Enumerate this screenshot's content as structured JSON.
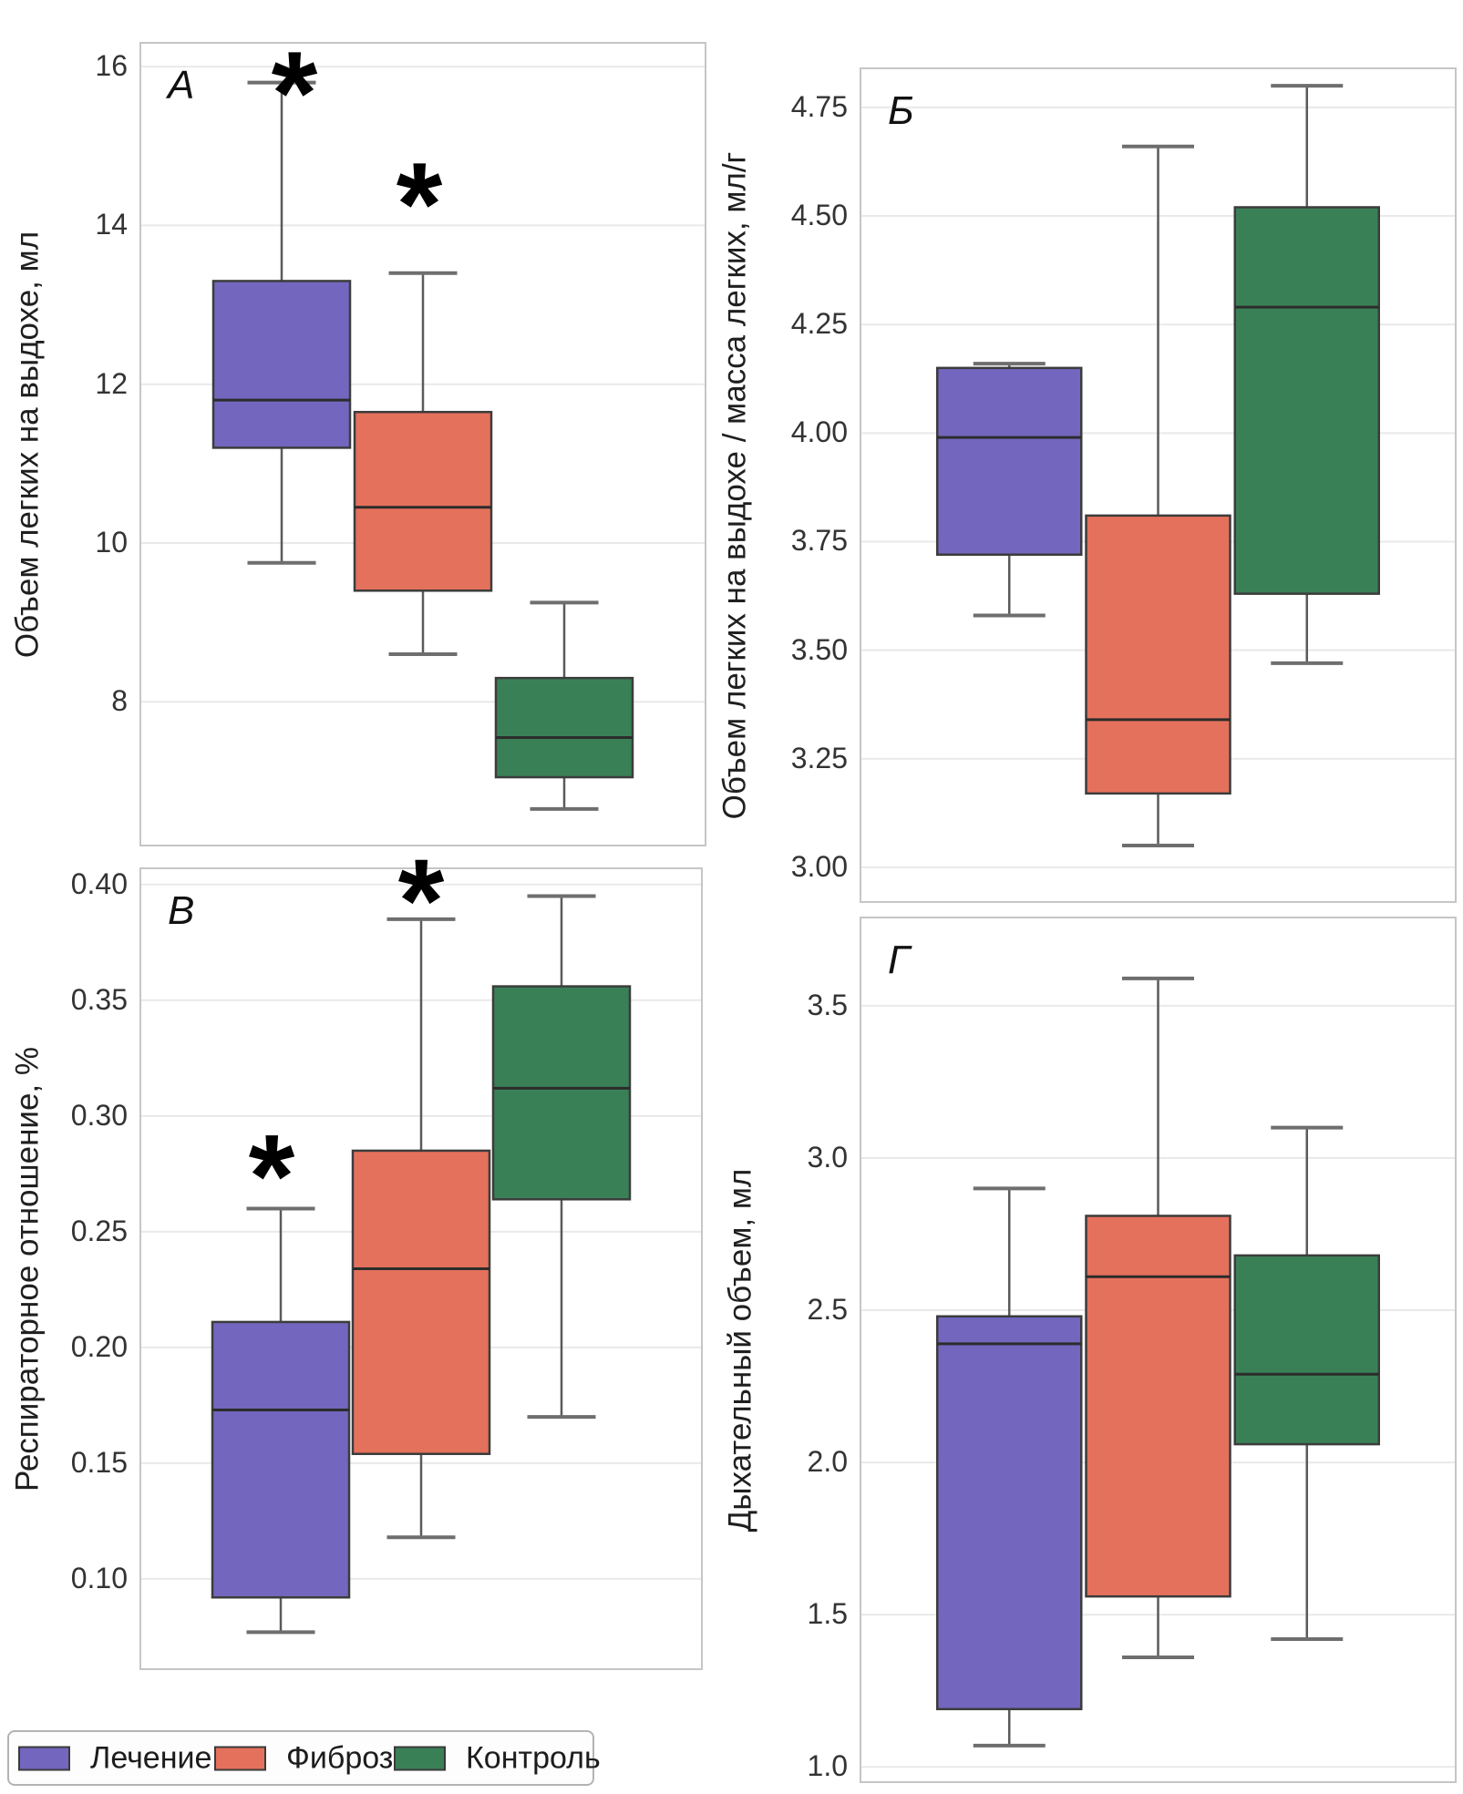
{
  "figure": {
    "background": "#ffffff",
    "grid_color": "#e9e9e9",
    "plot_border_color": "#c6c6c6",
    "box_edge_color": "#3c3c3c",
    "median_color": "#2c2c2c",
    "whisker_color": "#5a5a5a",
    "cap_color": "#6e6e6e",
    "annotation_color": "#000000"
  },
  "groups": [
    "Лечение",
    "Фиброз",
    "Контроль"
  ],
  "group_colors": [
    "#7266be",
    "#e4715c",
    "#3a8057"
  ],
  "legend": {
    "position": "bottom-left",
    "items": [
      {
        "label": "Лечение",
        "color": "#7266be"
      },
      {
        "label": "Фиброз",
        "color": "#e4715c"
      },
      {
        "label": "Контроль",
        "color": "#3a8057"
      }
    ]
  },
  "chart_data": [
    {
      "type": "box",
      "panel": "А",
      "ylabel": "Объем легких на выдохе, мл",
      "ylim": [
        6.19,
        16.3
      ],
      "yticks": [
        8,
        10,
        12,
        14,
        16
      ],
      "ytick_labels": [
        "8",
        "10",
        "12",
        "14",
        "16"
      ],
      "grid": true,
      "series": [
        {
          "name": "Лечение",
          "whislo": 9.75,
          "q1": 11.2,
          "med": 11.8,
          "q3": 13.3,
          "whishi": 15.8
        },
        {
          "name": "Фиброз",
          "whislo": 8.6,
          "q1": 9.4,
          "med": 10.45,
          "q3": 11.65,
          "whishi": 13.4
        },
        {
          "name": "Контроль",
          "whislo": 6.65,
          "q1": 7.05,
          "med": 7.55,
          "q3": 8.3,
          "whishi": 9.25
        }
      ],
      "annotations": [
        {
          "symbol": "*",
          "group": 0,
          "value": 15.9,
          "dx": 14
        },
        {
          "symbol": "*",
          "group": 1,
          "value": 14.5,
          "dx": -4
        }
      ]
    },
    {
      "type": "box",
      "panel": "Б",
      "ylabel": "Объем легких на выдохе / масса легких, мл/г",
      "ylim": [
        2.92,
        4.84
      ],
      "yticks": [
        3.0,
        3.25,
        3.5,
        3.75,
        4.0,
        4.25,
        4.5,
        4.75
      ],
      "ytick_labels": [
        "3.00",
        "3.25",
        "3.50",
        "3.75",
        "4.00",
        "4.25",
        "4.50",
        "4.75"
      ],
      "grid": true,
      "series": [
        {
          "name": "Лечение",
          "whislo": 3.58,
          "q1": 3.72,
          "med": 3.99,
          "q3": 4.15,
          "whishi": 4.16
        },
        {
          "name": "Фиброз",
          "whislo": 3.05,
          "q1": 3.17,
          "med": 3.34,
          "q3": 3.81,
          "whishi": 4.66
        },
        {
          "name": "Контроль",
          "whislo": 3.47,
          "q1": 3.63,
          "med": 4.29,
          "q3": 4.52,
          "whishi": 4.8
        }
      ],
      "annotations": []
    },
    {
      "type": "box",
      "panel": "В",
      "ylabel": "Респираторное отношение, %",
      "ylim": [
        0.061,
        0.407
      ],
      "yticks": [
        0.1,
        0.15,
        0.2,
        0.25,
        0.3,
        0.35,
        0.4
      ],
      "ytick_labels": [
        "0.10",
        "0.15",
        "0.20",
        "0.25",
        "0.30",
        "0.35",
        "0.40"
      ],
      "grid": true,
      "series": [
        {
          "name": "Лечение",
          "whislo": 0.077,
          "q1": 0.092,
          "med": 0.173,
          "q3": 0.211,
          "whishi": 0.26
        },
        {
          "name": "Фиброз",
          "whislo": 0.118,
          "q1": 0.154,
          "med": 0.234,
          "q3": 0.285,
          "whishi": 0.385
        },
        {
          "name": "Контроль",
          "whislo": 0.17,
          "q1": 0.264,
          "med": 0.312,
          "q3": 0.356,
          "whishi": 0.395
        }
      ],
      "annotations": [
        {
          "symbol": "*",
          "group": 0,
          "value": 0.282,
          "dx": -10
        },
        {
          "symbol": "*",
          "group": 1,
          "value": 0.401,
          "dx": 0
        }
      ]
    },
    {
      "type": "box",
      "panel": "Г",
      "ylabel": "Дыхательный объем, мл",
      "ylim": [
        0.95,
        3.79
      ],
      "yticks": [
        1.0,
        1.5,
        2.0,
        2.5,
        3.0,
        3.5
      ],
      "ytick_labels": [
        "1.0",
        "1.5",
        "2.0",
        "2.5",
        "3.0",
        "3.5"
      ],
      "grid": true,
      "series": [
        {
          "name": "Лечение",
          "whislo": 1.07,
          "q1": 1.19,
          "med": 2.39,
          "q3": 2.48,
          "whishi": 2.9
        },
        {
          "name": "Фиброз",
          "whislo": 1.36,
          "q1": 1.56,
          "med": 2.61,
          "q3": 2.81,
          "whishi": 3.59
        },
        {
          "name": "Контроль",
          "whislo": 1.42,
          "q1": 2.06,
          "med": 2.29,
          "q3": 2.68,
          "whishi": 3.1
        }
      ],
      "annotations": []
    }
  ]
}
